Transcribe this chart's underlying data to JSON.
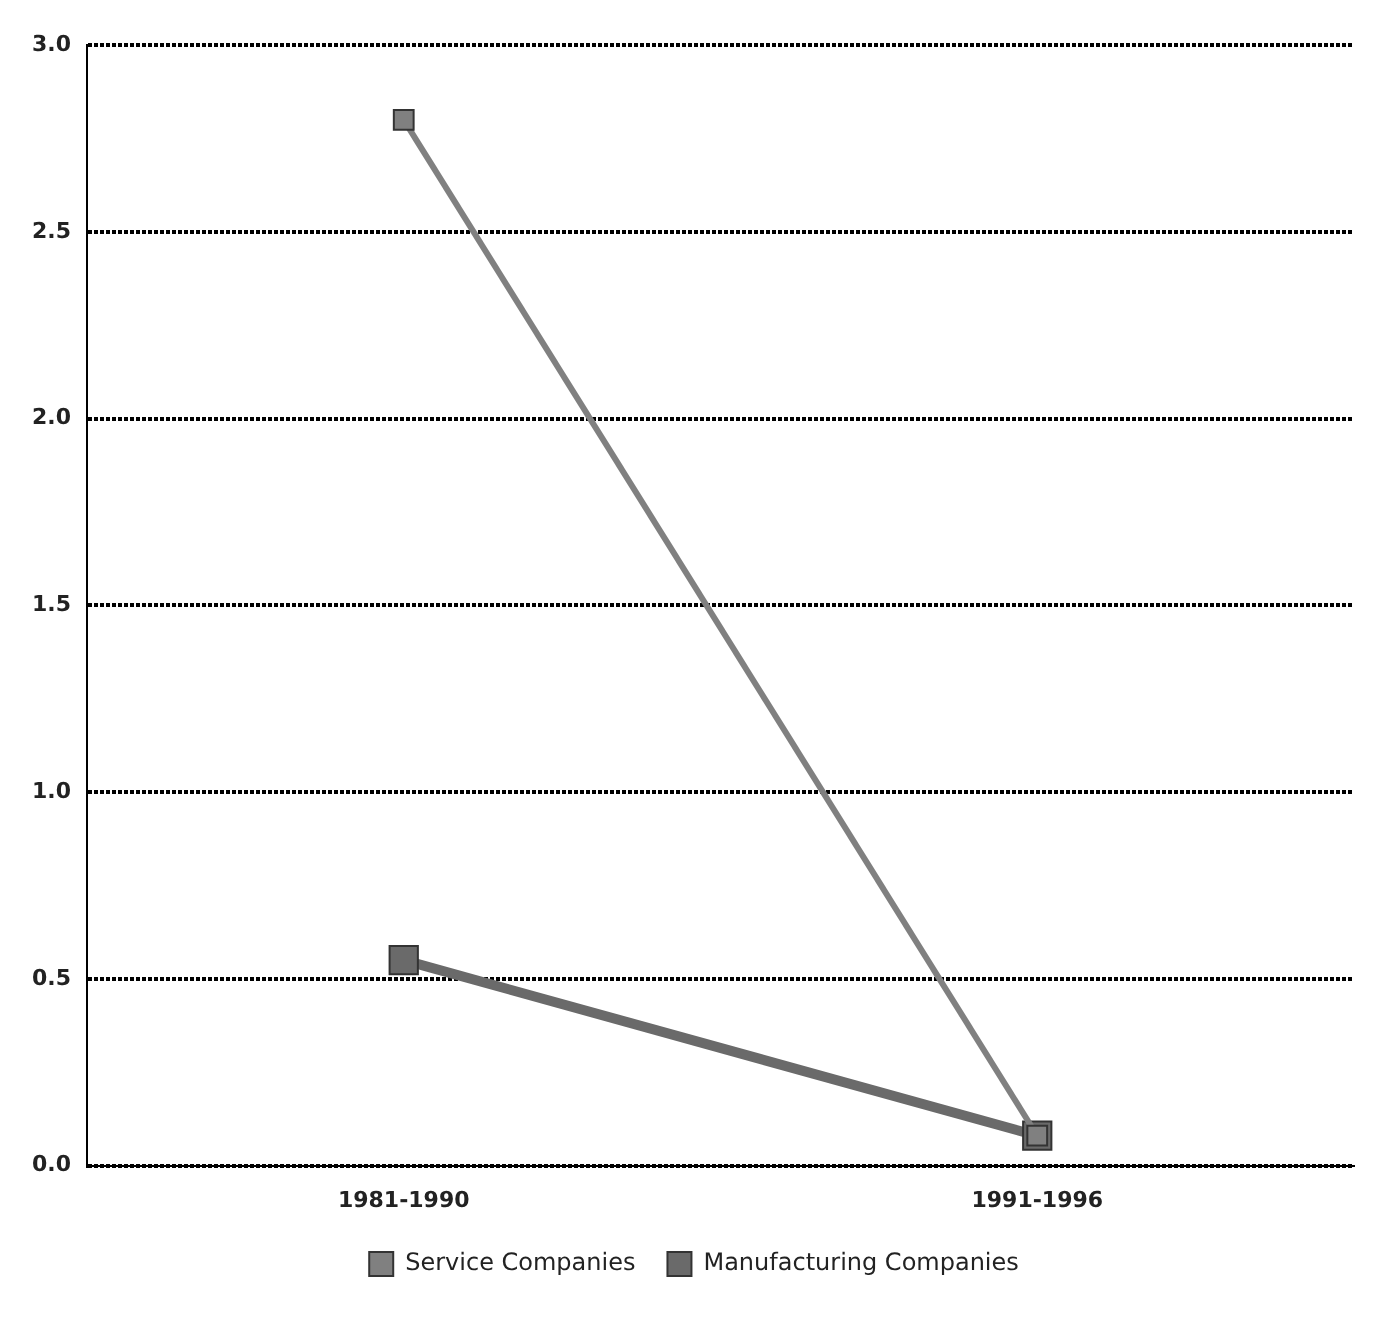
{
  "chart_data": {
    "type": "line",
    "categories": [
      "1981-1990",
      "1991-1996"
    ],
    "series": [
      {
        "name": "Service Companies",
        "color": "#808080",
        "values": [
          2.8,
          0.08
        ]
      },
      {
        "name": "Manufacturing Companies",
        "color": "#6a6a6a",
        "values": [
          0.55,
          0.08
        ]
      }
    ],
    "ylim": [
      0,
      3
    ],
    "yticks": [
      {
        "value": 0,
        "label": "0.0"
      },
      {
        "value": 0.5,
        "label": "0.5"
      },
      {
        "value": 1,
        "label": "1.0"
      },
      {
        "value": 1.5,
        "label": "1.5"
      },
      {
        "value": 2,
        "label": "2.0"
      },
      {
        "value": 2.5,
        "label": "2.5"
      },
      {
        "value": 3,
        "label": "3.0"
      }
    ],
    "grid": "y",
    "legend": "bottom",
    "marker": "square",
    "line_style": "solid"
  }
}
